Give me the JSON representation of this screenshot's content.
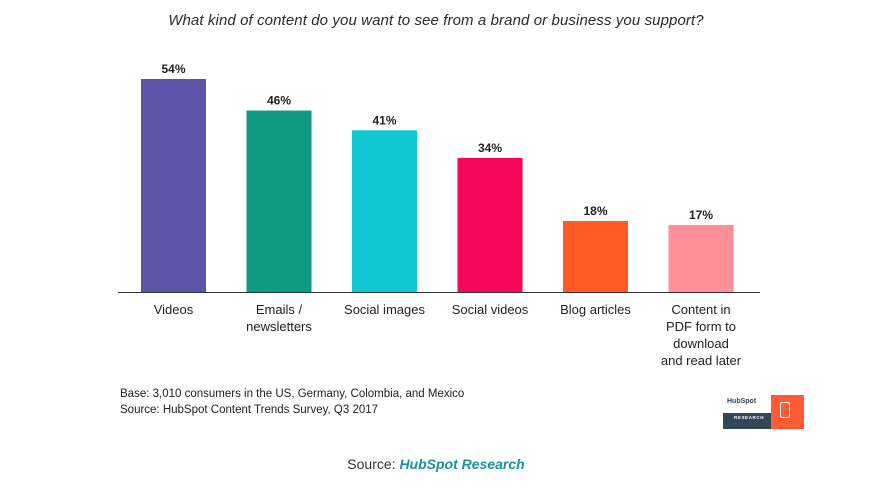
{
  "chart_data": {
    "type": "bar",
    "title": "What kind of content do you want to see from a brand or business you support?",
    "categories": [
      [
        "Videos"
      ],
      [
        "Emails /",
        "newsletters"
      ],
      [
        "Social images"
      ],
      [
        "Social videos"
      ],
      [
        "Blog articles"
      ],
      [
        "Content in",
        "PDF form to",
        "download",
        "and read later"
      ]
    ],
    "values": [
      54,
      46,
      41,
      34,
      18,
      17
    ],
    "value_labels": [
      "54%",
      "46%",
      "41%",
      "34%",
      "18%",
      "17%"
    ],
    "colors": [
      "#5b55aa",
      "#0e9a83",
      "#10c7d4",
      "#f5075a",
      "#ff5a24",
      "#ff8f99"
    ],
    "ylim": [
      0,
      54
    ],
    "grid": false,
    "legend": "none"
  },
  "notes": {
    "base": "Base: 3,010 consumers in the US, Germany, Colombia, and Mexico",
    "source": "Source: HubSpot Content Trends Survey, Q3 2017"
  },
  "logo": {
    "brand": "HubSpot",
    "sub": "RESEARCH"
  },
  "caption": {
    "prefix": "Source:",
    "link": "HubSpot Research"
  }
}
